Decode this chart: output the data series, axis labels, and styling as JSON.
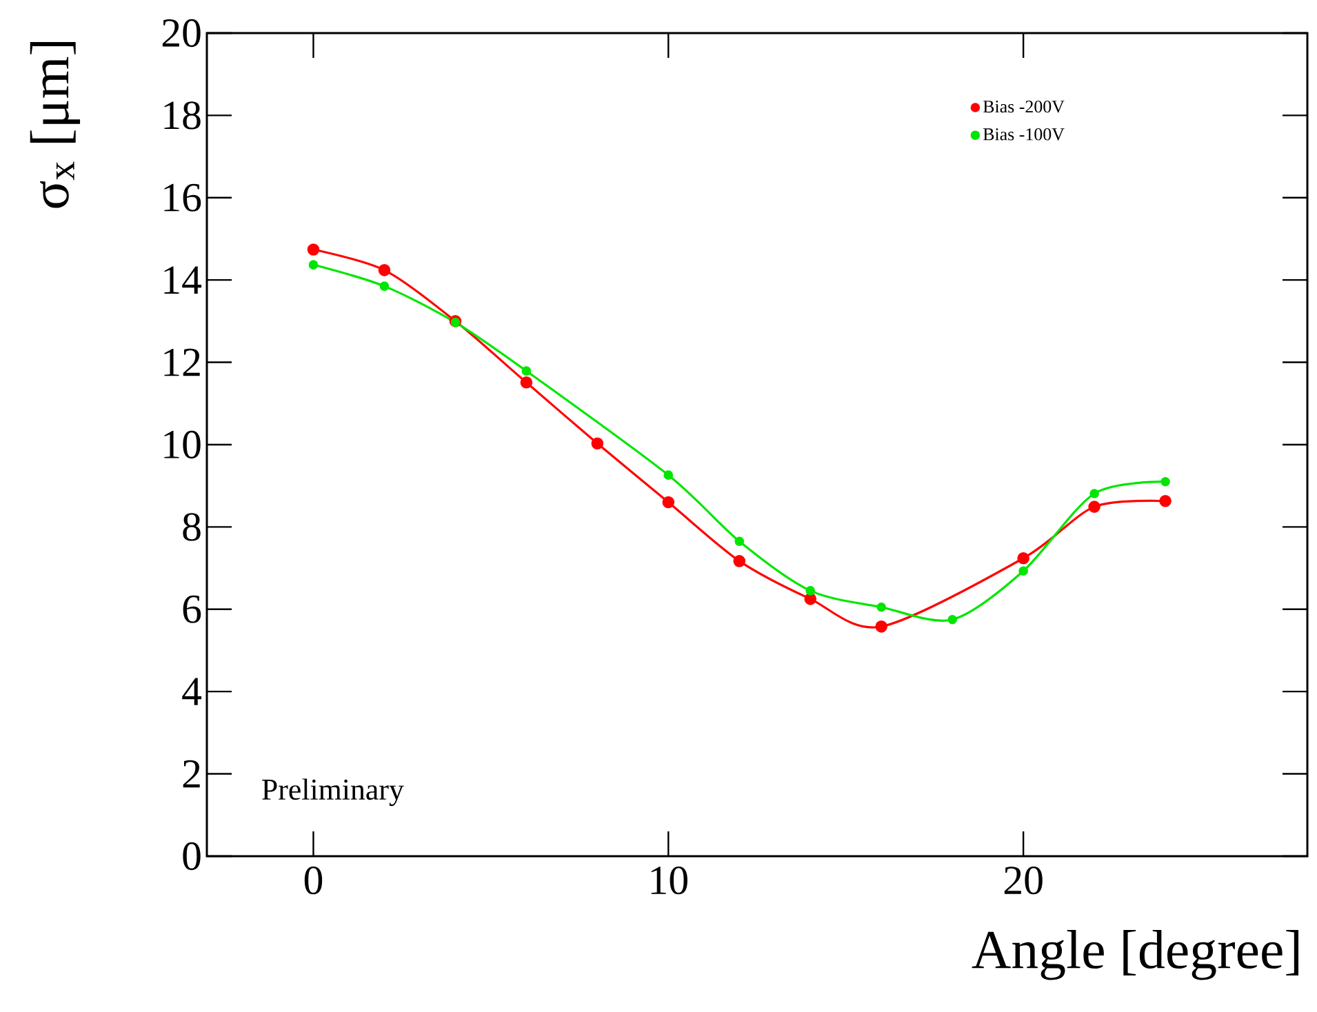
{
  "chart_data": {
    "type": "line",
    "xlabel": "Angle [degree]",
    "ylabel": "σ$_{x}$ [μm]",
    "xlim": [
      -3,
      28
    ],
    "ylim": [
      0,
      20
    ],
    "xticks": [
      0,
      10,
      20
    ],
    "yticks": [
      0,
      2,
      4,
      6,
      8,
      10,
      12,
      14,
      16,
      18,
      20
    ],
    "series": [
      {
        "name": "Bias -200V",
        "color": "#ff0000",
        "x": [
          0,
          2,
          4,
          6,
          8,
          10,
          12,
          14,
          16,
          20,
          22,
          24
        ],
        "values": [
          14.74,
          14.24,
          13.0,
          11.51,
          10.03,
          8.6,
          7.17,
          6.25,
          5.58,
          7.24,
          8.49,
          8.63
        ]
      },
      {
        "name": "Bias -100V",
        "color": "#00e600",
        "x": [
          0,
          2,
          4,
          6,
          10,
          12,
          14,
          16,
          18,
          20,
          22,
          24
        ],
        "values": [
          14.37,
          13.85,
          12.97,
          11.79,
          9.26,
          7.65,
          6.45,
          6.05,
          5.75,
          6.93,
          8.81,
          9.1
        ]
      }
    ],
    "marker": "circle",
    "line_style": "solid",
    "legend": "top right",
    "annotations": [
      "Preliminary"
    ]
  }
}
